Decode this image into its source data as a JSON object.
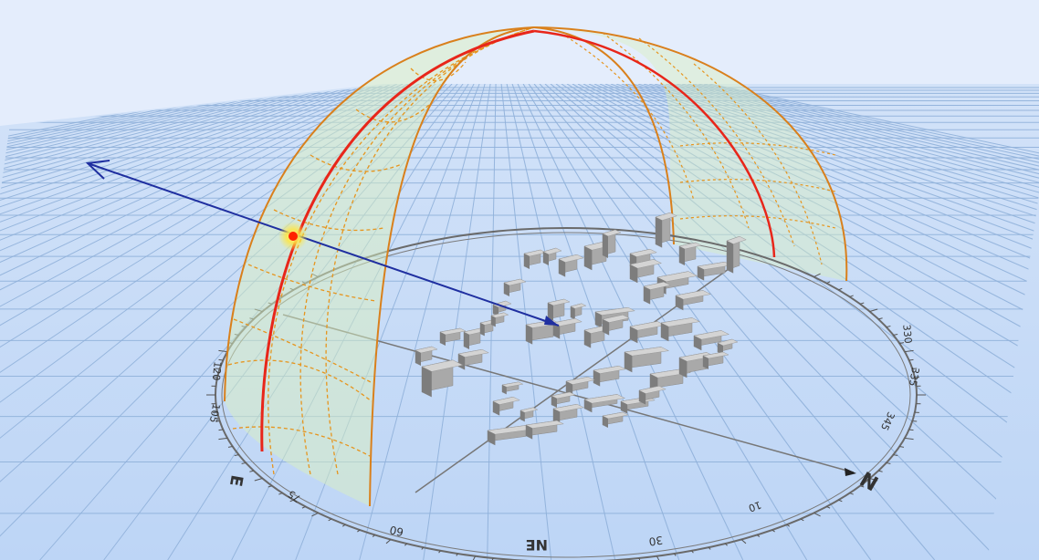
{
  "viewport": {
    "sky_color": "#e4edfc",
    "ground_color": "#c5dbf8",
    "grid_color": "#8fb0d9"
  },
  "compass": {
    "directions": [
      {
        "key": "north",
        "text": "N"
      },
      {
        "key": "east",
        "text": "E"
      }
    ],
    "ring_labels": [
      {
        "key": "ne",
        "text": "NE"
      },
      {
        "key": "30",
        "text": "30"
      },
      {
        "key": "60",
        "text": "60"
      },
      {
        "key": "10",
        "text": "10"
      },
      {
        "key": "75",
        "text": "75"
      },
      {
        "key": "105",
        "text": "105"
      },
      {
        "key": "120",
        "text": "120"
      },
      {
        "key": "345",
        "text": "345"
      },
      {
        "key": "335",
        "text": "335"
      },
      {
        "key": "330",
        "text": "330"
      }
    ]
  },
  "sun_path": {
    "dome_fill": "#d9f0c0",
    "path_color": "#e8261a",
    "grid_color": "#e6951e",
    "arc_color": "#d9801c"
  },
  "sun": {
    "color": "#ff2200",
    "glow": "#ffe640"
  },
  "vector": {
    "color": "#1f2fa0"
  },
  "buildings": {
    "color": "#a9a9a9",
    "shadow": "#7d7d7d"
  }
}
